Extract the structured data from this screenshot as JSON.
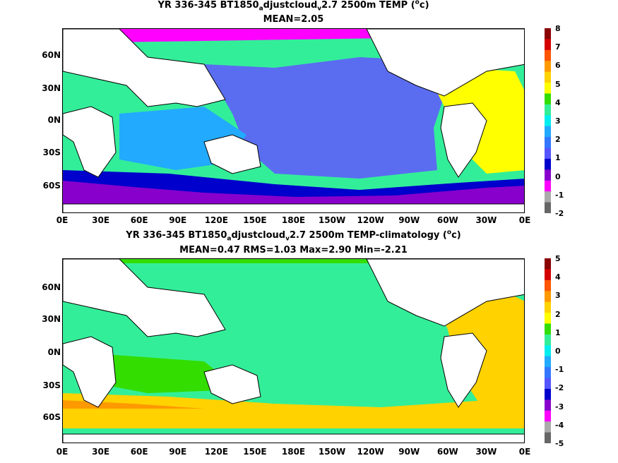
{
  "maps": [
    {
      "title_line1": "YR 336-345 BT1850",
      "title_sub1": "a",
      "title_mid": "djustcloud",
      "title_sub2": "v",
      "title_rest": "2.7 2500m TEMP (",
      "title_sup": "o",
      "title_end": "c)",
      "stats": "MEAN=2.05",
      "colorbar_labels": [
        "8",
        "7",
        "6",
        "5",
        "4",
        "3",
        "2",
        "1",
        "0",
        "-1",
        "-2"
      ],
      "colorbar_colors": [
        "#8b0000",
        "#d40000",
        "#ff5500",
        "#ff9900",
        "#ffd200",
        "#ffff00",
        "#33dd00",
        "#33ee99",
        "#00eeee",
        "#22aaff",
        "#3377ff",
        "#5555ff",
        "#0000cc",
        "#8800cc",
        "#ff00ff",
        "#aaaaaa",
        "#666666"
      ]
    },
    {
      "title_line1": "YR 336-345 BT1850",
      "title_sub1": "a",
      "title_mid": "djustcloud",
      "title_sub2": "v",
      "title_rest": "2.7 2500m TEMP-climatology (",
      "title_sup": "o",
      "title_end": "c)",
      "stats": "MEAN=0.47   RMS=1.03   Max=2.90   Min=-2.21",
      "colorbar_labels": [
        "5",
        "4",
        "3",
        "2",
        "1",
        "0",
        "-1",
        "-2",
        "-3",
        "-4",
        "-5"
      ],
      "colorbar_colors": [
        "#8b0000",
        "#d40000",
        "#ff5500",
        "#ff9900",
        "#ffd200",
        "#ffff00",
        "#33dd00",
        "#33ee99",
        "#00eeee",
        "#22aaff",
        "#3377ff",
        "#5555ff",
        "#0000cc",
        "#8800cc",
        "#ff00ff",
        "#aaaaaa",
        "#666666"
      ]
    }
  ],
  "lat_labels": [
    "60N",
    "30N",
    "0N",
    "30S",
    "60S"
  ],
  "lon_labels": [
    "0E",
    "30E",
    "60E",
    "90E",
    "120E",
    "150E",
    "180E",
    "150W",
    "120W",
    "90W",
    "60W",
    "30W",
    "0E"
  ],
  "colors": {
    "pacific_top": "#5a6df0",
    "indian_top": "#22aaff",
    "atlantic_top": "#ffff00",
    "southern_top": "#33ee99",
    "pacific_bottom": "#33ee99",
    "atlantic_bottom": "#ffd200",
    "southern_bottom": "#ffd200"
  }
}
